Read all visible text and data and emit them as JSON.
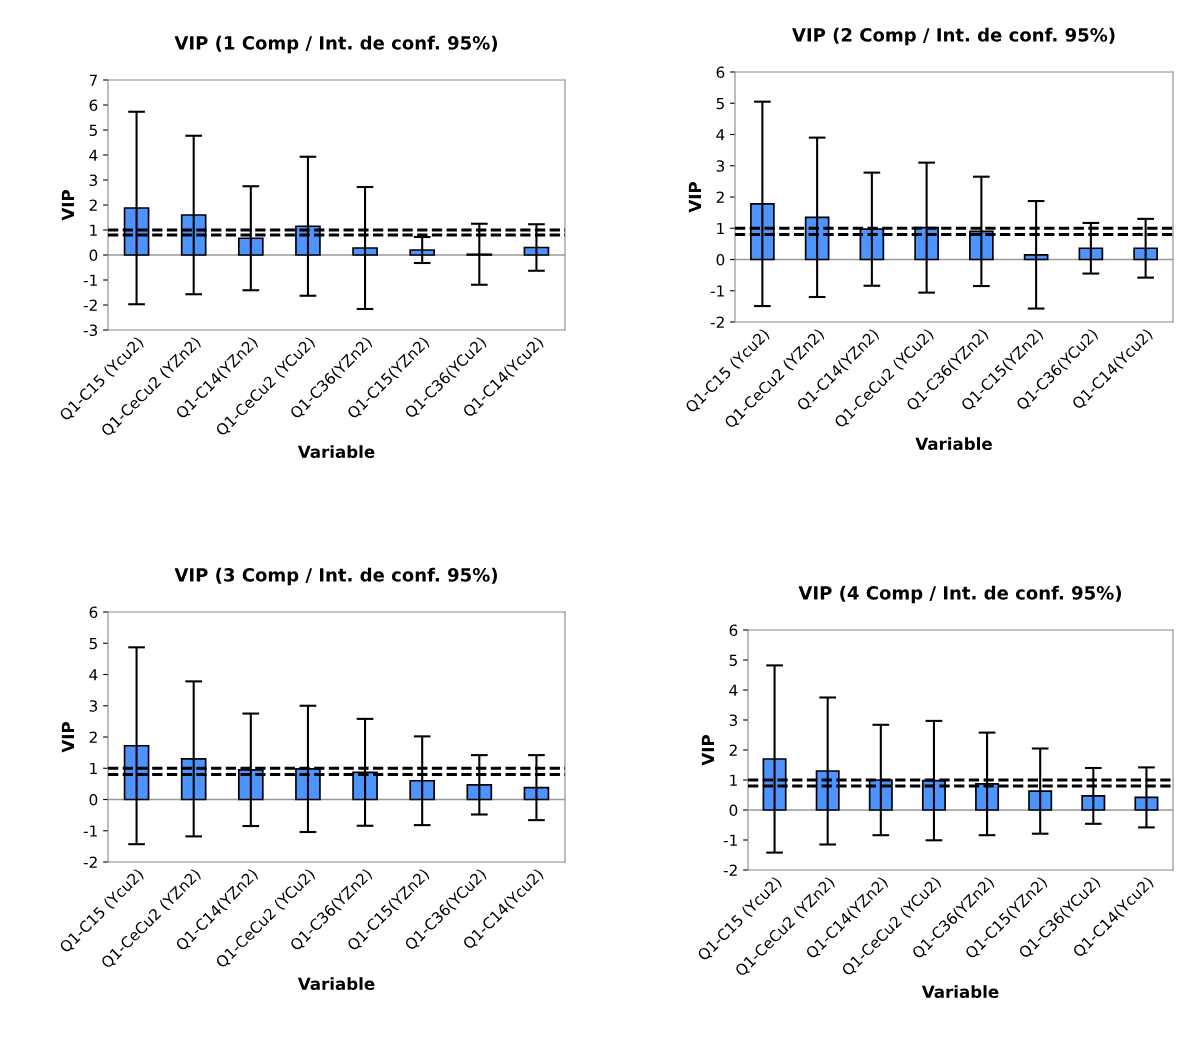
{
  "chart_data": [
    {
      "type": "bar",
      "title": "VIP (1 Comp / Int. de conf. 95%)",
      "xlabel": "Variable",
      "ylabel": "VIP",
      "categories": [
        "Q1-C15 (Ycu2)",
        "Q1-CeCu2 (YZn2)",
        "Q1-C14(YZn2)",
        "Q1-CeCu2 (YCu2)",
        "Q1-C36(YZn2)",
        "Q1-C15(YZn2)",
        "Q1-C36(YCu2)",
        "Q1-C14(Ycu2)"
      ],
      "values": [
        1.88,
        1.6,
        0.67,
        1.15,
        0.28,
        0.2,
        0.03,
        0.3
      ],
      "errors": [
        3.85,
        3.17,
        2.08,
        2.78,
        2.44,
        0.52,
        1.22,
        0.93
      ],
      "color": "#4d94ff",
      "ylim": [
        -3,
        7
      ],
      "yticks": [
        -3,
        -2,
        -1,
        0,
        1,
        2,
        3,
        4,
        5,
        6,
        7
      ],
      "ref_lines": [
        {
          "axis": "y",
          "value": 1,
          "color": "#000000",
          "line_style": "dashed"
        },
        {
          "axis": "y",
          "value": 0.8,
          "color": "#000000",
          "line_style": "dashed"
        }
      ],
      "grid": false
    },
    {
      "type": "bar",
      "title": "VIP (2 Comp / Int. de conf. 95%)",
      "xlabel": "Variable",
      "ylabel": "VIP",
      "categories": [
        "Q1-C15 (Ycu2)",
        "Q1-CeCu2 (YZn2)",
        "Q1-C14(YZn2)",
        "Q1-CeCu2 (YCu2)",
        "Q1-C36(YZn2)",
        "Q1-C15(YZn2)",
        "Q1-C36(YCu2)",
        "Q1-C14(Ycu2)"
      ],
      "values": [
        1.78,
        1.35,
        0.97,
        1.02,
        0.9,
        0.15,
        0.36,
        0.36
      ],
      "errors": [
        3.27,
        2.55,
        1.81,
        2.08,
        1.75,
        1.72,
        0.81,
        0.94
      ],
      "color": "#4d94ff",
      "ylim": [
        -2,
        6
      ],
      "yticks": [
        -2,
        -1,
        0,
        1,
        2,
        3,
        4,
        5,
        6
      ],
      "ref_lines": [
        {
          "axis": "y",
          "value": 1,
          "color": "#000000",
          "line_style": "dashed"
        },
        {
          "axis": "y",
          "value": 0.8,
          "color": "#000000",
          "line_style": "dashed"
        }
      ],
      "grid": false
    },
    {
      "type": "bar",
      "title": "VIP (3 Comp / Int. de conf. 95%)",
      "xlabel": "Variable",
      "ylabel": "VIP",
      "categories": [
        "Q1-C15 (Ycu2)",
        "Q1-CeCu2 (YZn2)",
        "Q1-C14(YZn2)",
        "Q1-CeCu2 (YCu2)",
        "Q1-C36(YZn2)",
        "Q1-C15(YZn2)",
        "Q1-C36(YCu2)",
        "Q1-C14(Ycu2)"
      ],
      "values": [
        1.72,
        1.3,
        0.95,
        0.98,
        0.87,
        0.6,
        0.47,
        0.38
      ],
      "errors": [
        3.15,
        2.48,
        1.8,
        2.02,
        1.71,
        1.42,
        0.95,
        1.04
      ],
      "color": "#4d94ff",
      "ylim": [
        -2,
        6
      ],
      "yticks": [
        -2,
        -1,
        0,
        1,
        2,
        3,
        4,
        5,
        6
      ],
      "ref_lines": [
        {
          "axis": "y",
          "value": 1,
          "color": "#000000",
          "line_style": "dashed"
        },
        {
          "axis": "y",
          "value": 0.8,
          "color": "#000000",
          "line_style": "dashed"
        }
      ],
      "grid": false
    },
    {
      "type": "bar",
      "title": "VIP (4 Comp / Int. de conf. 95%)",
      "xlabel": "Variable",
      "ylabel": "VIP",
      "categories": [
        "Q1-C15 (Ycu2)",
        "Q1-CeCu2 (YZn2)",
        "Q1-C14(YZn2)",
        "Q1-CeCu2 (YCu2)",
        "Q1-C36(YZn2)",
        "Q1-C15(YZn2)",
        "Q1-C36(YCu2)",
        "Q1-C14(Ycu2)"
      ],
      "values": [
        1.7,
        1.3,
        1.0,
        0.98,
        0.87,
        0.63,
        0.47,
        0.42
      ],
      "errors": [
        3.12,
        2.45,
        1.84,
        1.99,
        1.71,
        1.42,
        0.93,
        1.0
      ],
      "color": "#4d94ff",
      "ylim": [
        -2,
        6
      ],
      "yticks": [
        -2,
        -1,
        0,
        1,
        2,
        3,
        4,
        5,
        6
      ],
      "ref_lines": [
        {
          "axis": "y",
          "value": 1,
          "color": "#000000",
          "line_style": "dashed"
        },
        {
          "axis": "y",
          "value": 0.8,
          "color": "#000000",
          "line_style": "dashed"
        }
      ],
      "grid": false
    }
  ]
}
